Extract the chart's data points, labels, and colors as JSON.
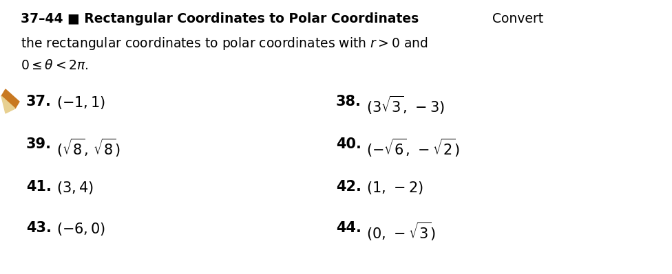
{
  "bg_color": "#ffffff",
  "header_fontsize": 13.5,
  "body_fontsize": 15,
  "num_fontsize": 15,
  "problems": [
    {
      "num": "37.",
      "expr": "$(-1, 1)$"
    },
    {
      "num": "38.",
      "expr": "$(3\\sqrt{3},\\,-3)$"
    },
    {
      "num": "39.",
      "expr": "$(\\sqrt{8},\\,\\sqrt{8})$"
    },
    {
      "num": "40.",
      "expr": "$(-\\sqrt{6},\\,-\\sqrt{2})$"
    },
    {
      "num": "41.",
      "expr": "$(3, 4)$"
    },
    {
      "num": "42.",
      "expr": "$(1,\\,-2)$"
    },
    {
      "num": "43.",
      "expr": "$(-6, 0)$"
    },
    {
      "num": "44.",
      "expr": "$(0,\\,-\\sqrt{3})$"
    }
  ],
  "pencil_color": "#c87820",
  "pencil_tip_color": "#e8c870"
}
